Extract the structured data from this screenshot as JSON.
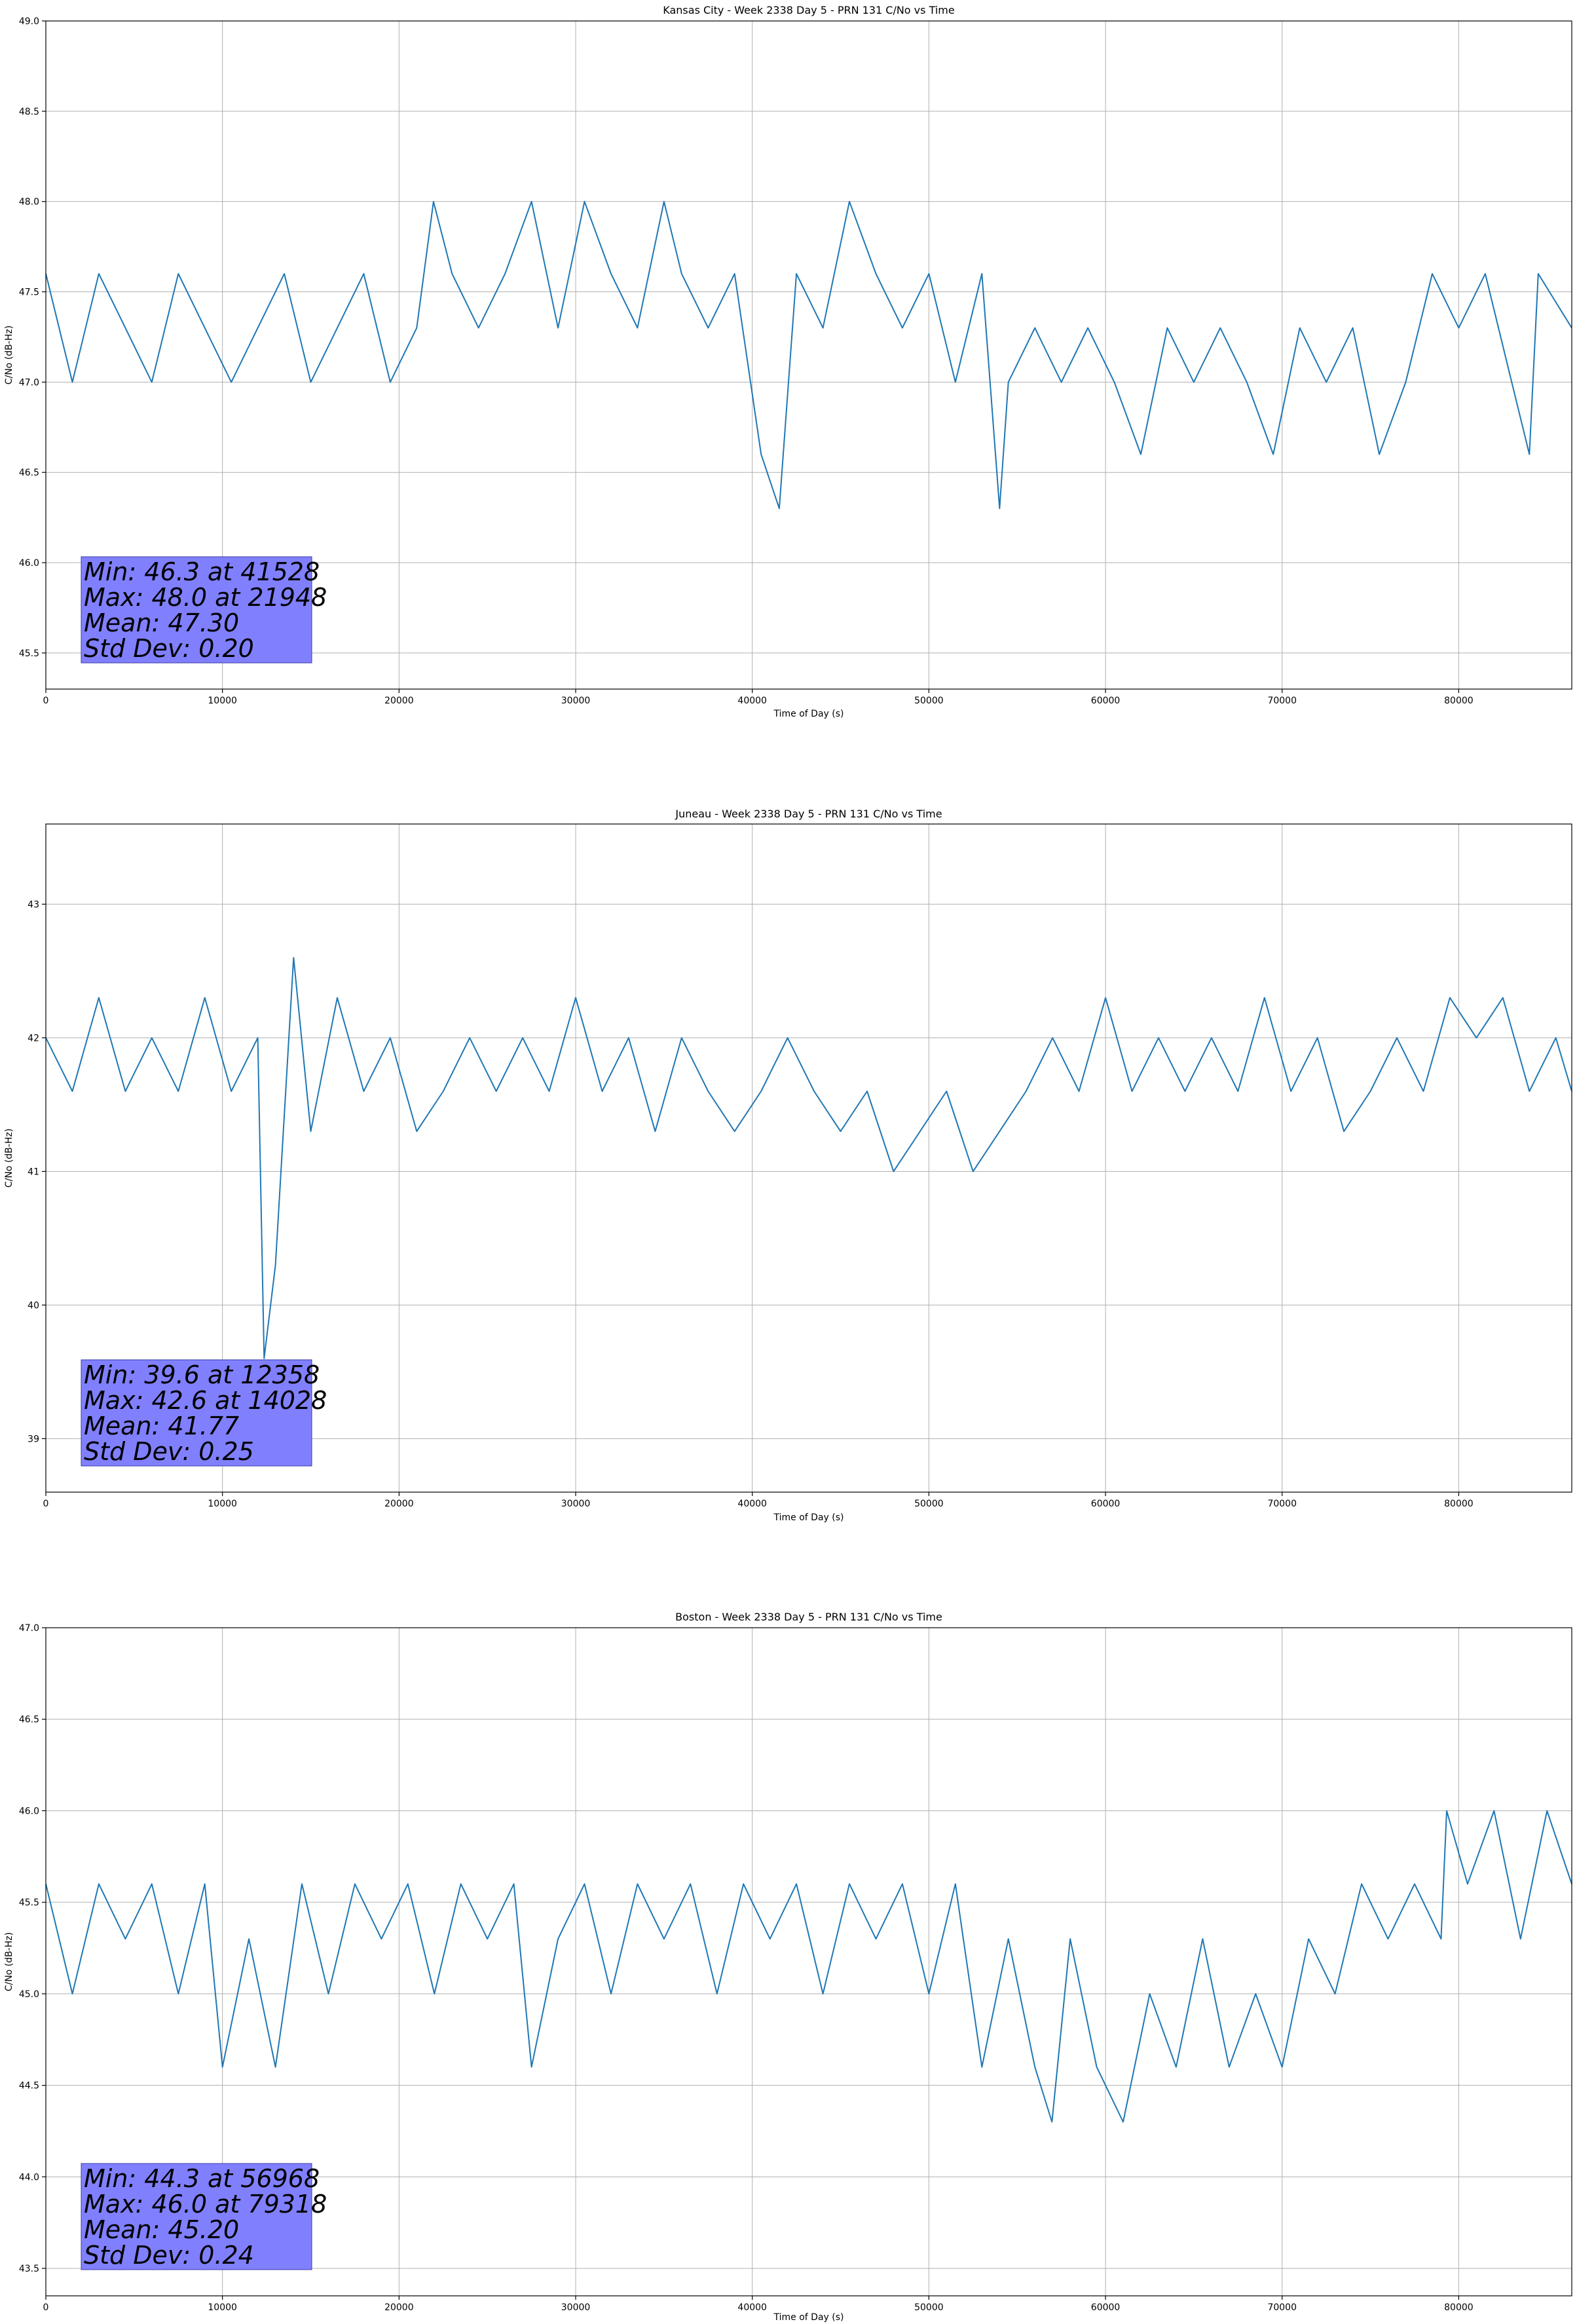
{
  "style": {
    "series_color": "#1f77b4",
    "grid_color": "#b0b0b0",
    "stats_box_color": "#8080ff"
  },
  "chart_data": [
    {
      "type": "line",
      "title": "Kansas City - Week 2338 Day 5 - PRN 131 C/No vs Time",
      "xlabel": "Time of Day (s)",
      "ylabel": "C/No (dB-Hz)",
      "xlim": [
        0,
        86400
      ],
      "ylim": [
        45.3,
        49.0
      ],
      "xticks": [
        0,
        10000,
        20000,
        30000,
        40000,
        50000,
        60000,
        70000,
        80000
      ],
      "yticks": [
        45.5,
        46.0,
        46.5,
        47.0,
        47.5,
        48.0,
        48.5,
        49.0
      ],
      "ytick_decimals": 1,
      "grid": true,
      "series": [
        {
          "x": [
            0,
            1500,
            3000,
            4500,
            6000,
            7500,
            9000,
            10500,
            12000,
            13500,
            15000,
            16500,
            18000,
            19500,
            21000,
            21948,
            23000,
            24500,
            26000,
            27500,
            29000,
            30500,
            32000,
            33500,
            35000,
            36000,
            37500,
            39000,
            40500,
            41528,
            42500,
            44000,
            45500,
            47000,
            48500,
            50000,
            51500,
            53000,
            54000,
            54500,
            56000,
            57500,
            59000,
            60500,
            62000,
            63500,
            65000,
            66500,
            68000,
            69500,
            71000,
            72500,
            74000,
            75500,
            77000,
            78500,
            80000,
            81500,
            83000,
            84000,
            84500,
            86400
          ],
          "y": [
            47.6,
            47.0,
            47.6,
            47.3,
            47.0,
            47.6,
            47.3,
            47.0,
            47.3,
            47.6,
            47.0,
            47.3,
            47.6,
            47.0,
            47.3,
            48.0,
            47.6,
            47.3,
            47.6,
            48.0,
            47.3,
            48.0,
            47.6,
            47.3,
            48.0,
            47.6,
            47.3,
            47.6,
            46.6,
            46.3,
            47.6,
            47.3,
            48.0,
            47.6,
            47.3,
            47.6,
            47.0,
            47.6,
            46.3,
            47.0,
            47.3,
            47.0,
            47.3,
            47.0,
            46.6,
            47.3,
            47.0,
            47.3,
            47.0,
            46.6,
            47.3,
            47.0,
            47.3,
            46.6,
            47.0,
            47.6,
            47.3,
            47.6,
            47.0,
            46.6,
            47.6,
            47.3
          ]
        }
      ],
      "stats_lines": [
        "Min: 46.3 at 41528",
        "Max: 48.0 at 21948",
        "Mean: 47.30",
        "Std Dev: 0.20"
      ]
    },
    {
      "type": "line",
      "title": "Juneau - Week 2338 Day 5 - PRN 131 C/No vs Time",
      "xlabel": "Time of Day (s)",
      "ylabel": "C/No (dB-Hz)",
      "xlim": [
        0,
        86400
      ],
      "ylim": [
        38.6,
        43.6
      ],
      "xticks": [
        0,
        10000,
        20000,
        30000,
        40000,
        50000,
        60000,
        70000,
        80000
      ],
      "yticks": [
        39,
        40,
        41,
        42,
        43
      ],
      "ytick_decimals": 0,
      "grid": true,
      "series": [
        {
          "x": [
            0,
            1500,
            3000,
            4500,
            6000,
            7500,
            9000,
            10500,
            12000,
            12358,
            13000,
            14028,
            15000,
            16500,
            18000,
            19500,
            21000,
            22500,
            24000,
            25500,
            27000,
            28500,
            30000,
            31500,
            33000,
            34500,
            36000,
            37500,
            39000,
            40500,
            42000,
            43500,
            45000,
            46500,
            48000,
            49500,
            51000,
            52500,
            54000,
            55500,
            57000,
            58500,
            60000,
            61500,
            63000,
            64500,
            66000,
            67500,
            69000,
            70500,
            72000,
            73500,
            75000,
            76500,
            78000,
            79500,
            81000,
            82500,
            84000,
            85500,
            86400
          ],
          "y": [
            42.0,
            41.6,
            42.3,
            41.6,
            42.0,
            41.6,
            42.3,
            41.6,
            42.0,
            39.6,
            40.3,
            42.6,
            41.3,
            42.3,
            41.6,
            42.0,
            41.3,
            41.6,
            42.0,
            41.6,
            42.0,
            41.6,
            42.3,
            41.6,
            42.0,
            41.3,
            42.0,
            41.6,
            41.3,
            41.6,
            42.0,
            41.6,
            41.3,
            41.6,
            41.0,
            41.3,
            41.6,
            41.0,
            41.3,
            41.6,
            42.0,
            41.6,
            42.3,
            41.6,
            42.0,
            41.6,
            42.0,
            41.6,
            42.3,
            41.6,
            42.0,
            41.3,
            41.6,
            42.0,
            41.6,
            42.3,
            42.0,
            42.3,
            41.6,
            42.0,
            41.6
          ]
        }
      ],
      "stats_lines": [
        "Min: 39.6 at 12358",
        "Max: 42.6 at 14028",
        "Mean: 41.77",
        "Std Dev: 0.25"
      ]
    },
    {
      "type": "line",
      "title": "Boston - Week 2338 Day 5 - PRN 131 C/No vs Time",
      "xlabel": "Time of Day (s)",
      "ylabel": "C/No (dB-Hz)",
      "xlim": [
        0,
        86400
      ],
      "ylim": [
        43.35,
        47.0
      ],
      "xticks": [
        0,
        10000,
        20000,
        30000,
        40000,
        50000,
        60000,
        70000,
        80000
      ],
      "yticks": [
        43.5,
        44.0,
        44.5,
        45.0,
        45.5,
        46.0,
        46.5,
        47.0
      ],
      "ytick_decimals": 1,
      "grid": true,
      "series": [
        {
          "x": [
            0,
            1500,
            3000,
            4500,
            6000,
            7500,
            9000,
            10000,
            11500,
            13000,
            14500,
            16000,
            17500,
            19000,
            20500,
            22000,
            23500,
            25000,
            26500,
            27500,
            29000,
            30500,
            32000,
            33500,
            35000,
            36500,
            38000,
            39500,
            41000,
            42500,
            44000,
            45500,
            47000,
            48500,
            50000,
            51500,
            53000,
            54500,
            56000,
            56968,
            58000,
            59500,
            61000,
            62500,
            64000,
            65500,
            67000,
            68500,
            70000,
            71500,
            73000,
            74500,
            76000,
            77500,
            79000,
            79318,
            80500,
            82000,
            83500,
            85000,
            86400
          ],
          "y": [
            45.6,
            45.0,
            45.6,
            45.3,
            45.6,
            45.0,
            45.6,
            44.6,
            45.3,
            44.6,
            45.6,
            45.0,
            45.6,
            45.3,
            45.6,
            45.0,
            45.6,
            45.3,
            45.6,
            44.6,
            45.3,
            45.6,
            45.0,
            45.6,
            45.3,
            45.6,
            45.0,
            45.6,
            45.3,
            45.6,
            45.0,
            45.6,
            45.3,
            45.6,
            45.0,
            45.6,
            44.6,
            45.3,
            44.6,
            44.3,
            45.3,
            44.6,
            44.3,
            45.0,
            44.6,
            45.3,
            44.6,
            45.0,
            44.6,
            45.3,
            45.0,
            45.6,
            45.3,
            45.6,
            45.3,
            46.0,
            45.6,
            46.0,
            45.3,
            46.0,
            45.6
          ]
        }
      ],
      "stats_lines": [
        "Min: 44.3 at 56968",
        "Max: 46.0 at 79318",
        "Mean: 45.20",
        "Std Dev: 0.24"
      ]
    }
  ]
}
